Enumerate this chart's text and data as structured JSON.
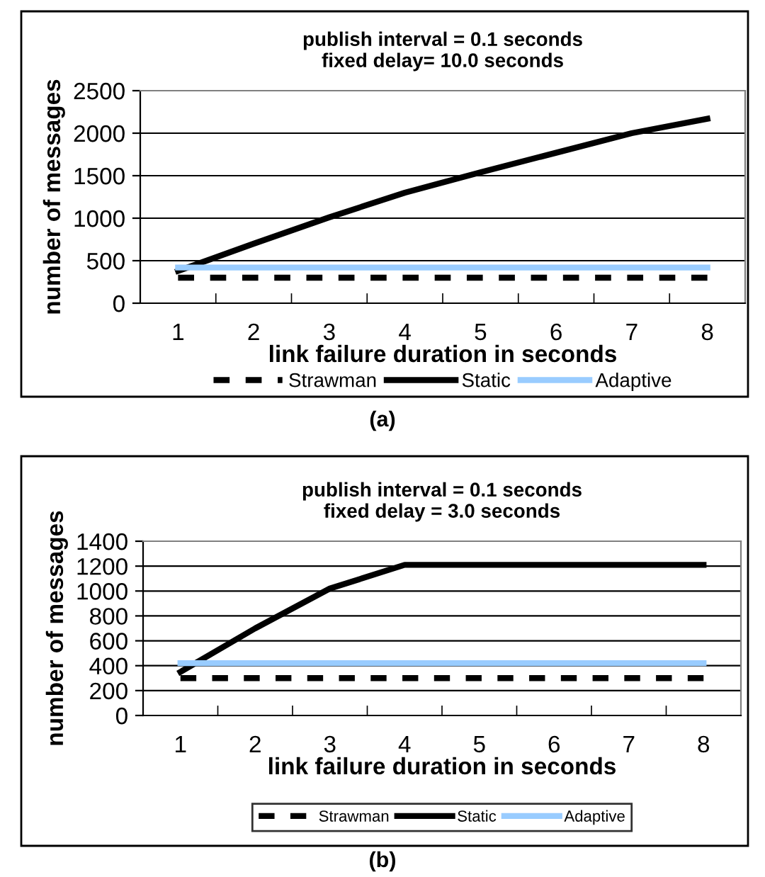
{
  "chart_data": [
    {
      "type": "line",
      "title": "publish interval = 0.1 seconds\nfixed delay= 10.0 seconds",
      "xlabel": "link failure duration in seconds",
      "ylabel": "number of messages",
      "categories": [
        "1",
        "2",
        "3",
        "4",
        "5",
        "6",
        "7",
        "8"
      ],
      "series": [
        {
          "name": "Strawman",
          "color": "#000000",
          "line_style": "dashed",
          "values": [
            300,
            300,
            300,
            300,
            300,
            300,
            300,
            300
          ]
        },
        {
          "name": "Static",
          "color": "#000000",
          "line_style": "solid",
          "values": [
            380,
            700,
            1010,
            1300,
            1540,
            1770,
            2000,
            2170
          ]
        },
        {
          "name": "Adaptive",
          "color": "#99ccff",
          "line_style": "solid",
          "values": [
            420,
            420,
            420,
            420,
            420,
            420,
            420,
            420
          ]
        }
      ],
      "ylim": [
        0,
        2500
      ],
      "yticks": [
        0,
        500,
        1000,
        1500,
        2000,
        2500
      ],
      "grid": "y",
      "legend": "bottom",
      "marker": "none",
      "annotations": [
        "(a)"
      ]
    },
    {
      "type": "line",
      "title": "publish interval = 0.1 seconds\nfixed delay = 3.0 seconds",
      "xlabel": "link failure duration in seconds",
      "ylabel": "number of messages",
      "categories": [
        "1",
        "2",
        "3",
        "4",
        "5",
        "6",
        "7",
        "8"
      ],
      "series": [
        {
          "name": "Strawman",
          "color": "#000000",
          "line_style": "dashed",
          "values": [
            300,
            300,
            300,
            300,
            300,
            300,
            300,
            300
          ]
        },
        {
          "name": "Static",
          "color": "#000000",
          "line_style": "solid",
          "values": [
            350,
            700,
            1020,
            1210,
            1210,
            1210,
            1210,
            1210
          ]
        },
        {
          "name": "Adaptive",
          "color": "#99ccff",
          "line_style": "solid",
          "values": [
            420,
            420,
            420,
            420,
            420,
            420,
            420,
            420
          ]
        }
      ],
      "ylim": [
        0,
        1400
      ],
      "yticks": [
        0,
        200,
        400,
        600,
        800,
        1000,
        1200,
        1400
      ],
      "grid": "y",
      "legend": "bottom",
      "marker": "none",
      "annotations": [
        "(b)"
      ]
    }
  ]
}
